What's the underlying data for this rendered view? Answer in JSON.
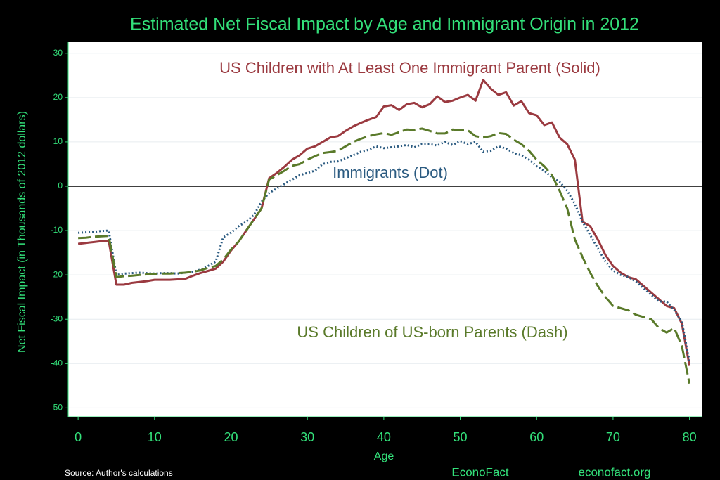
{
  "chart_data": {
    "type": "line",
    "title": "Estimated Net Fiscal Impact by Age and Immigrant Origin in 2012",
    "xlabel": "Age",
    "ylabel": "Net Fiscal Impact (in Thousands of 2012 dollars)",
    "source": "Source: Author's calculations",
    "footer": [
      "EconoFact",
      "econofact.org"
    ],
    "x": [
      0,
      1,
      2,
      3,
      4,
      5,
      6,
      7,
      8,
      9,
      10,
      11,
      12,
      13,
      14,
      15,
      16,
      17,
      18,
      19,
      20,
      21,
      22,
      23,
      24,
      25,
      26,
      27,
      28,
      29,
      30,
      31,
      32,
      33,
      34,
      35,
      36,
      37,
      38,
      39,
      40,
      41,
      42,
      43,
      44,
      45,
      46,
      47,
      48,
      49,
      50,
      51,
      52,
      53,
      54,
      55,
      56,
      57,
      58,
      59,
      60,
      61,
      62,
      63,
      64,
      65,
      66,
      67,
      68,
      69,
      70,
      71,
      72,
      73,
      74,
      75,
      76,
      77,
      78,
      79,
      80
    ],
    "series": [
      {
        "name": "US Children with At Least One Immigrant Parent (Solid)",
        "color": "#9b3a40",
        "style": "solid",
        "values": [
          -13,
          -12.8,
          -12.6,
          -12.4,
          -12.3,
          -22.2,
          -22.2,
          -21.8,
          -21.6,
          -21.4,
          -21.1,
          -21.1,
          -21.1,
          -21,
          -20.9,
          -20.2,
          -19.6,
          -19.1,
          -18.6,
          -17,
          -14.5,
          -12.5,
          -10,
          -7.5,
          -5,
          1.8,
          3,
          4.4,
          6,
          7,
          8.5,
          9,
          10,
          11,
          11.3,
          12.5,
          13.5,
          14.3,
          15,
          15.6,
          18,
          18.3,
          17.2,
          18.5,
          18.8,
          17.8,
          18.5,
          20.3,
          19,
          19.3,
          20,
          20.6,
          19.3,
          24,
          22,
          20.6,
          21.2,
          18.2,
          19.2,
          16.5,
          16,
          13.8,
          14.4,
          11,
          9.5,
          6,
          -8,
          -9,
          -12,
          -15.5,
          -18,
          -19.5,
          -20.5,
          -21,
          -22.5,
          -24,
          -25.5,
          -27,
          -27.5,
          -31,
          -40.5
        ]
      },
      {
        "name": "Immigrants (Dot)",
        "color": "#2a5a80",
        "style": "dot",
        "values": [
          -10.5,
          -10.4,
          -10.3,
          -10.1,
          -10,
          -20,
          -19.7,
          -19.6,
          -19.5,
          -19.6,
          -19.7,
          -19.6,
          -19.6,
          -19.7,
          -19.5,
          -19.3,
          -18.8,
          -18,
          -17,
          -11.5,
          -10.5,
          -9,
          -8,
          -6.5,
          -3.5,
          -1.5,
          -0.5,
          0.5,
          1.5,
          2.5,
          3,
          3.5,
          5,
          5.5,
          5.6,
          6.3,
          7,
          7.8,
          8.2,
          9,
          8.6,
          8.8,
          9,
          9.3,
          8.8,
          9.5,
          9.5,
          9.2,
          10,
          9.3,
          10.2,
          9.5,
          10,
          7.8,
          8,
          9,
          8.5,
          7.5,
          7,
          6,
          4.5,
          3.5,
          2,
          1,
          -1,
          -4,
          -8,
          -11,
          -14,
          -17,
          -19,
          -20,
          -20.5,
          -21.5,
          -23,
          -24.5,
          -26,
          -26,
          -28,
          -30.5,
          -39.5
        ]
      },
      {
        "name": "US Children of US-born Parents (Dash)",
        "color": "#5a7a2a",
        "style": "dash",
        "values": [
          -11.7,
          -11.6,
          -11.4,
          -11.3,
          -11.2,
          -20.5,
          -20.3,
          -20.2,
          -20,
          -19.9,
          -19.8,
          -19.7,
          -19.7,
          -19.6,
          -19.5,
          -19.3,
          -19,
          -18.4,
          -18,
          -16.5,
          -14.3,
          -12.5,
          -10,
          -7.5,
          -5,
          1.5,
          2.5,
          3.5,
          4.6,
          5,
          6,
          6.8,
          7.5,
          7.7,
          8,
          9,
          10,
          10.7,
          11.3,
          11.7,
          12,
          11.6,
          12.2,
          12.8,
          12.7,
          13,
          12.5,
          11.9,
          11.9,
          12.8,
          12.6,
          12.6,
          11.3,
          11,
          11.3,
          12,
          11.8,
          10.5,
          9.5,
          8,
          6,
          4.5,
          2.5,
          -1,
          -5,
          -12,
          -16,
          -19.5,
          -22.5,
          -25,
          -27,
          -27.5,
          -28,
          -29,
          -29.5,
          -30,
          -32,
          -33,
          -32,
          -36,
          -44.5
        ]
      }
    ],
    "xlim": [
      -1.3,
      81.6
    ],
    "xticks": [
      0,
      10,
      20,
      30,
      40,
      50,
      60,
      70,
      80
    ],
    "ylim": [
      -52,
      32.5
    ],
    "yticks": [
      -50,
      -40,
      -30,
      -20,
      -10,
      0,
      10,
      20,
      30
    ],
    "reference_line": 0,
    "grid": true
  }
}
